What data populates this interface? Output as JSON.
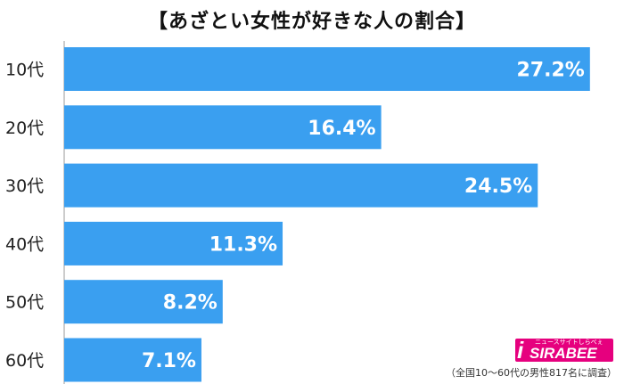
{
  "title": "【あざとい女性が好きな人の割合】",
  "colors": {
    "bar": "#3a9ff0",
    "axis": "#999999"
  },
  "chart_data": {
    "type": "bar",
    "orientation": "horizontal",
    "categories": [
      "10代",
      "20代",
      "30代",
      "40代",
      "50代",
      "60代"
    ],
    "values": [
      27.2,
      16.4,
      24.5,
      11.3,
      8.2,
      7.1
    ],
    "value_labels": [
      "27.2%",
      "16.4%",
      "24.5%",
      "11.3%",
      "8.2%",
      "7.1%"
    ],
    "xlim": [
      0,
      28.5
    ],
    "grid": false,
    "title": "【あざとい女性が好きな人の割合】"
  },
  "logo": {
    "text": "SIRABEE",
    "tagline": "ニュースサイトしらべぇ"
  },
  "footnote": "（全国10〜60代の男性817名に調査）"
}
